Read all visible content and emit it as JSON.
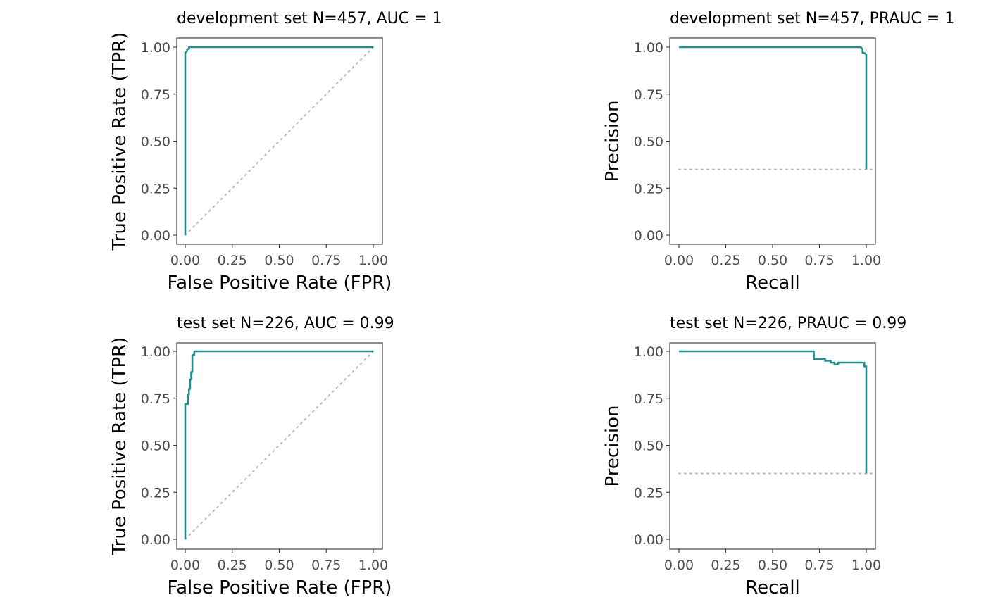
{
  "chart_data": [
    {
      "type": "line",
      "title": "development set N=457, AUC = 1",
      "xlabel": "False Positive Rate (FPR)",
      "ylabel": "True Positive Rate (TPR)",
      "xlim": [
        0,
        1
      ],
      "ylim": [
        0,
        1
      ],
      "xticks": [
        "0.00",
        "0.25",
        "0.50",
        "0.75",
        "1.00"
      ],
      "yticks": [
        "0.00",
        "0.25",
        "0.50",
        "0.75",
        "1.00"
      ],
      "series": [
        {
          "points": [
            [
              0,
              0
            ],
            [
              0,
              0.97
            ],
            [
              0.01,
              0.98
            ],
            [
              0.01,
              0.99
            ],
            [
              0.02,
              0.99
            ],
            [
              0.02,
              1
            ],
            [
              1,
              1
            ]
          ]
        }
      ],
      "reference": {
        "points": [
          [
            0,
            0
          ],
          [
            1,
            1
          ]
        ]
      },
      "grid": false
    },
    {
      "type": "line",
      "title": "development set N=457, PRAUC = 1",
      "xlabel": "Recall",
      "ylabel": "Precision",
      "xlim": [
        0,
        1
      ],
      "ylim": [
        0,
        1
      ],
      "xticks": [
        "0.00",
        "0.25",
        "0.50",
        "0.75",
        "1.00"
      ],
      "yticks": [
        "0.00",
        "0.25",
        "0.50",
        "0.75",
        "1.00"
      ],
      "series": [
        {
          "points": [
            [
              0,
              1
            ],
            [
              0.97,
              1
            ],
            [
              0.98,
              0.99
            ],
            [
              0.98,
              0.97
            ],
            [
              0.99,
              0.97
            ],
            [
              1,
              0.96
            ],
            [
              1,
              0.35
            ]
          ]
        }
      ],
      "reference": {
        "points": [
          [
            0,
            0.35
          ],
          [
            1.03,
            0.35
          ]
        ]
      },
      "grid": false
    },
    {
      "type": "line",
      "title": "test set N=226, AUC = 0.99",
      "xlabel": "False Positive Rate (FPR)",
      "ylabel": "True Positive Rate (TPR)",
      "xlim": [
        0,
        1
      ],
      "ylim": [
        0,
        1
      ],
      "xticks": [
        "0.00",
        "0.25",
        "0.50",
        "0.75",
        "1.00"
      ],
      "yticks": [
        "0.00",
        "0.25",
        "0.50",
        "0.75",
        "1.00"
      ],
      "series": [
        {
          "points": [
            [
              0,
              0
            ],
            [
              0,
              0.72
            ],
            [
              0.014,
              0.72
            ],
            [
              0.014,
              0.77
            ],
            [
              0.02,
              0.77
            ],
            [
              0.02,
              0.8
            ],
            [
              0.026,
              0.8
            ],
            [
              0.026,
              0.85
            ],
            [
              0.032,
              0.85
            ],
            [
              0.032,
              0.89
            ],
            [
              0.038,
              0.89
            ],
            [
              0.038,
              0.98
            ],
            [
              0.048,
              0.98
            ],
            [
              0.048,
              1
            ],
            [
              1,
              1
            ]
          ]
        }
      ],
      "reference": {
        "points": [
          [
            0,
            0
          ],
          [
            1,
            1
          ]
        ]
      },
      "grid": false
    },
    {
      "type": "line",
      "title": "test set N=226, PRAUC = 0.99",
      "xlabel": "Recall",
      "ylabel": "Precision",
      "xlim": [
        0,
        1
      ],
      "ylim": [
        0,
        1
      ],
      "xticks": [
        "0.00",
        "0.25",
        "0.50",
        "0.75",
        "1.00"
      ],
      "yticks": [
        "0.00",
        "0.25",
        "0.50",
        "0.75",
        "1.00"
      ],
      "series": [
        {
          "points": [
            [
              0,
              1
            ],
            [
              0.72,
              1
            ],
            [
              0.72,
              0.96
            ],
            [
              0.78,
              0.96
            ],
            [
              0.78,
              0.95
            ],
            [
              0.81,
              0.95
            ],
            [
              0.81,
              0.94
            ],
            [
              0.83,
              0.94
            ],
            [
              0.83,
              0.93
            ],
            [
              0.85,
              0.93
            ],
            [
              0.85,
              0.94
            ],
            [
              0.99,
              0.94
            ],
            [
              0.99,
              0.92
            ],
            [
              1,
              0.92
            ],
            [
              1,
              0.35
            ]
          ]
        }
      ],
      "reference": {
        "points": [
          [
            0,
            0.35
          ],
          [
            1.03,
            0.35
          ]
        ]
      },
      "grid": false
    }
  ]
}
